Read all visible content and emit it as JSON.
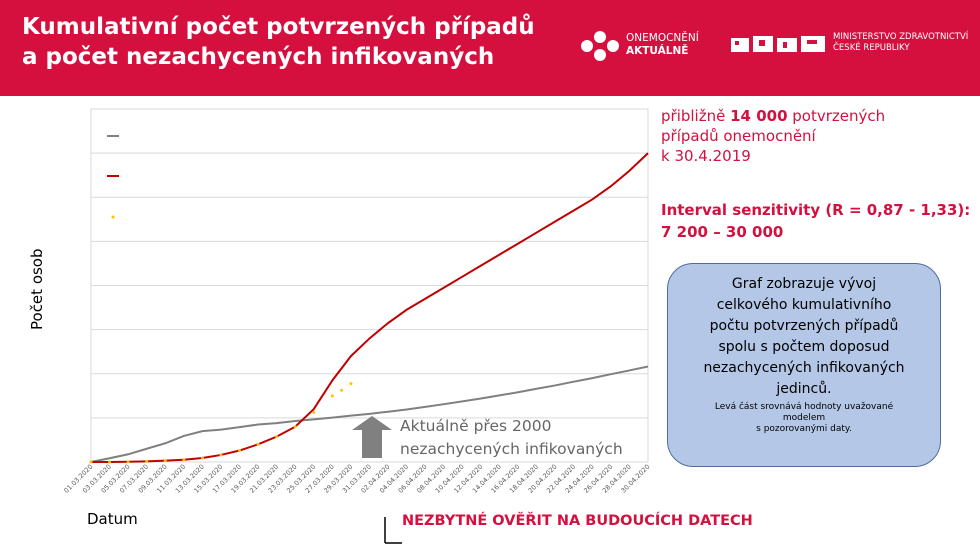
{
  "header": {
    "title_line1": "Kumulativní počet potvrzených případů",
    "title_line2": "a počet nezachycených infikovaných",
    "logo1_line1": "ONEMOCNĚNÍ",
    "logo1_line2": "AKTUÁLNĚ",
    "logo2_line1": "MINISTERSTVO ZDRAVOTNICTVÍ",
    "logo2_line2": "ČESKÉ REPUBLIKY"
  },
  "colors": {
    "header_red": "#d5103f",
    "confirmed_line": "#c00000",
    "undetected_line": "#808080",
    "observed_points": "#ffc000",
    "bubble_fill": "#b4c7e7"
  },
  "axis": {
    "ylabel": "Počet osob",
    "xlabel": "Datum"
  },
  "annotation": {
    "arrow_line1": "Aktuálně přes 2000",
    "arrow_line2": "nezachycených infikovaných"
  },
  "info": {
    "line1_pre": "přibližně ",
    "line1_bold": "14 000",
    "line1_post": " potvrzených",
    "line2": "případů onemocnění",
    "line3": "k 30.4.2019",
    "interval_line1": "Interval senzitivity (R = 0,87 - 1,33):",
    "interval_line2": "7 200 – 30 000"
  },
  "bubble": {
    "line1": "Graf zobrazuje vývoj",
    "line2": "celkového kumulativního",
    "line3": "počtu potvrzených případů",
    "line4": "spolu s počtem doposud",
    "line5": "nezachycených infikovaných",
    "line6": "jedinců.",
    "small1": "Levá část srovnává hodnoty uvažované",
    "small2": "modelem",
    "small3": "s pozorovanými daty."
  },
  "footer": {
    "verify": "NEZBYTNÉ OVĚŘIT NA BUDOUCÍCH DATECH"
  },
  "chart_data": {
    "type": "line",
    "ylabel": "Počet osob",
    "xlabel": "Datum",
    "x": [
      "01.03.2020",
      "03.03.2020",
      "05.03.2020",
      "07.03.2020",
      "09.03.2020",
      "11.03.2020",
      "13.03.2020",
      "15.03.2020",
      "17.03.2020",
      "19.03.2020",
      "21.03.2020",
      "23.03.2020",
      "25.03.2020",
      "27.03.2020",
      "29.03.2020",
      "31.03.2020",
      "02.04.2020",
      "04.04.2020",
      "06.04.2020",
      "08.04.2020",
      "10.04.2020",
      "12.04.2020",
      "14.04.2020",
      "16.04.2020",
      "18.04.2020",
      "20.04.2020",
      "22.04.2020",
      "24.04.2020",
      "26.04.2020",
      "28.04.2020",
      "30.04.2020"
    ],
    "grid": true,
    "series": [
      {
        "values": [
          0,
          170,
          350,
          600,
          850,
          1180,
          1400,
          1470,
          1580,
          1700,
          1760,
          1860,
          1930,
          2010,
          2100,
          2180,
          2280,
          2380,
          2500,
          2620,
          2750,
          2880,
          3020,
          3160,
          3320,
          3470,
          3640,
          3800,
          3980,
          4150,
          4330
        ]
      },
      {
        "values": [
          0,
          0,
          10,
          30,
          60,
          100,
          180,
          320,
          520,
          800,
          1150,
          1600,
          2400,
          3700,
          4800,
          5600,
          6300,
          6900,
          7400,
          7900,
          8400,
          8900,
          9400,
          9900,
          10400,
          10900,
          11400,
          11900,
          12500,
          13200,
          14000
        ]
      },
      {
        "x": [
          "01.03.2020",
          "03.03.2020",
          "05.03.2020",
          "07.03.2020",
          "09.03.2020",
          "11.03.2020",
          "13.03.2020",
          "15.03.2020",
          "17.03.2020",
          "19.03.2020",
          "21.03.2020",
          "23.03.2020",
          "25.03.2020",
          "27.03.2020",
          "28.03.2020",
          "29.03.2020"
        ],
        "values": [
          0,
          0,
          10,
          30,
          60,
          100,
          180,
          320,
          520,
          800,
          1150,
          1600,
          2250,
          3000,
          3250,
          3550
        ]
      }
    ]
  }
}
